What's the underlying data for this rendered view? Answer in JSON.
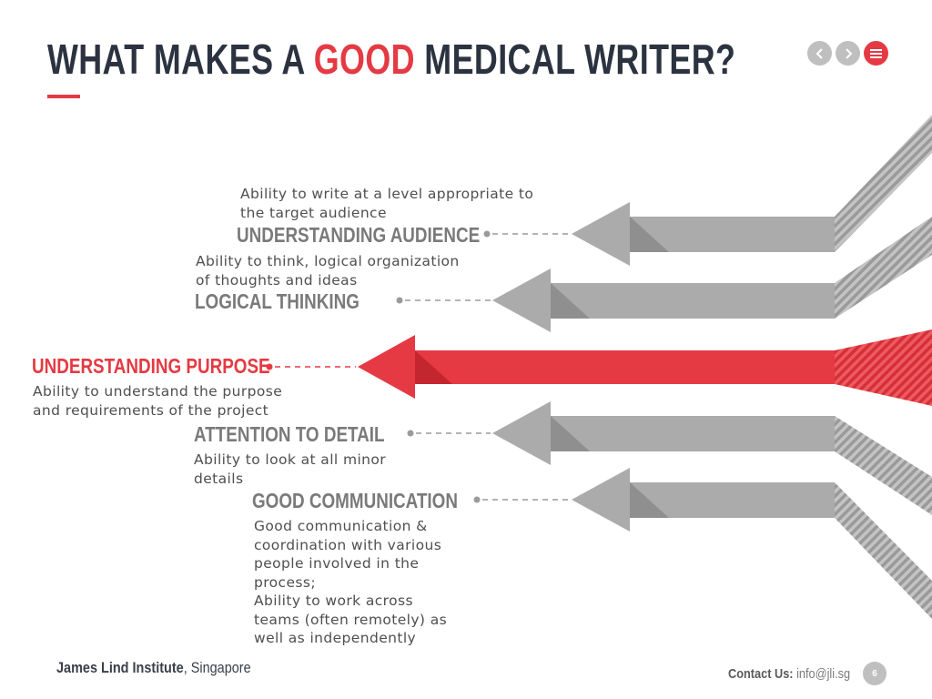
{
  "header": {
    "title_part1": "WHAT MAKES A ",
    "title_highlight": "GOOD",
    "title_part2": " MEDICAL WRITER?"
  },
  "nav": {
    "prev_icon": "chevron-left-icon",
    "next_icon": "chevron-right-icon",
    "menu_icon": "menu-icon"
  },
  "colors": {
    "accent": "#e53a43",
    "title": "#2c3340",
    "arrow_grey": "#ababab"
  },
  "items": [
    {
      "heading": "UNDERSTANDING AUDIENCE",
      "description_lines": [
        "Ability to write at a level appropriate to",
        "the target audience"
      ],
      "highlighted": false
    },
    {
      "heading": "LOGICAL THINKING",
      "description_lines": [
        "Ability to think, logical organization",
        "of thoughts and ideas"
      ],
      "highlighted": false
    },
    {
      "heading": "UNDERSTANDING PURPOSE",
      "description_lines": [
        "Ability to understand the purpose",
        "and requirements of the project"
      ],
      "highlighted": true
    },
    {
      "heading": "ATTENTION TO DETAIL",
      "description_lines": [
        "Ability to look at all minor",
        "details"
      ],
      "highlighted": false
    },
    {
      "heading": "GOOD COMMUNICATION",
      "description_lines": [
        "Good communication &",
        "coordination with various",
        "people involved in the",
        "process;",
        "Ability to work across",
        "teams (often remotely) as",
        "well as independently"
      ],
      "highlighted": false
    }
  ],
  "footer": {
    "org_name": "James Lind Institute",
    "org_location": ", Singapore",
    "contact_label": "Contact Us:",
    "contact_email": " info@jli.sg",
    "page_number": "6"
  }
}
